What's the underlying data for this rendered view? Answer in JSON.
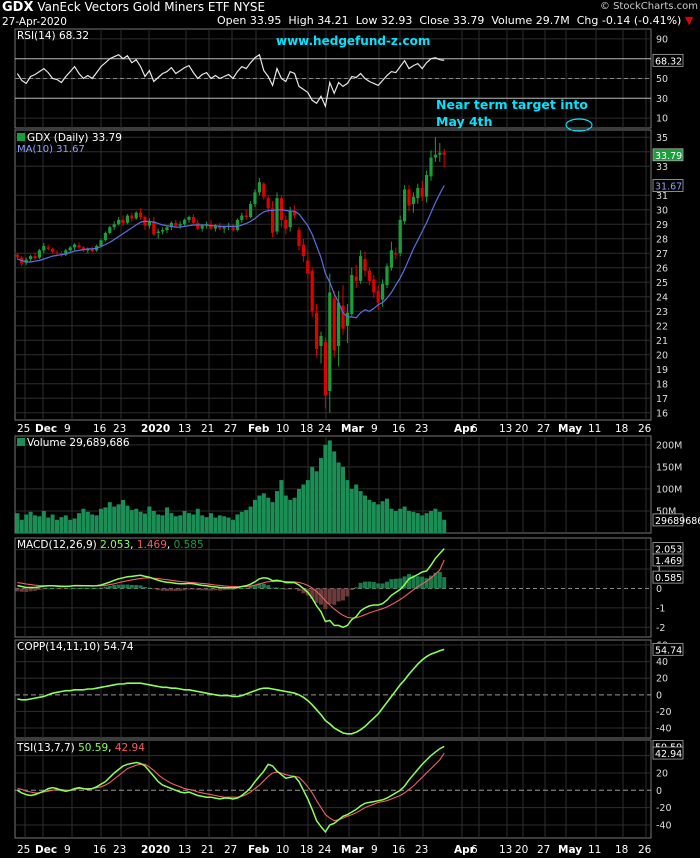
{
  "header": {
    "symbol": "GDX",
    "name": "VanEck Vectors Gold Miners ETF",
    "exchange": "NYSE",
    "credit": "© StockCharts.com",
    "date": "27-Apr-2020",
    "open_label": "Open",
    "open": "33.95",
    "high_label": "High",
    "high": "34.21",
    "low_label": "Low",
    "low": "32.93",
    "close_label": "Close",
    "close": "33.79",
    "volume_label": "Volume",
    "volume": "29.7M",
    "chg_label": "Chg",
    "chg": "-0.14 (-0.41%)",
    "chg_arrow": "▼"
  },
  "watermark": "www.hedgefund-z.com",
  "annotation": {
    "line1": "Near term target into",
    "line2": "May 4th"
  },
  "colors": {
    "up": "#1a9e3a",
    "down": "#e00000",
    "ma": "#5a6fe0",
    "rsi": "#e8e8e8",
    "oscillator": "#8cff5a",
    "signal": "#f06060",
    "volume": "#1a8e55",
    "annotation": "#00e5ff"
  },
  "x_axis": [
    "25",
    "Dec",
    "9",
    "16",
    "23",
    "2020",
    "13",
    "21",
    "27",
    "Feb",
    "10",
    "18",
    "24",
    "Mar",
    "9",
    "16",
    "23",
    "Apr",
    "6",
    "13",
    "20",
    "27",
    "May",
    "11",
    "18",
    "26"
  ],
  "panels": {
    "rsi": {
      "label": "RSI(14) 68.32",
      "value": "68.32",
      "ticks": [
        "90",
        "70",
        "50",
        "30",
        "10"
      ]
    },
    "price": {
      "label": "GDX (Daily) 33.79",
      "ma_label": "MA(10) 31.67",
      "close_tag": "33.79",
      "ma_tag": "31.67",
      "ticks": [
        "35",
        "34",
        "33",
        "31",
        "30",
        "29",
        "28",
        "27",
        "26",
        "25",
        "24",
        "23",
        "22",
        "21",
        "20",
        "19",
        "18",
        "17",
        "16"
      ]
    },
    "volume": {
      "label": "Volume 29,689,686",
      "tag": "29689686",
      "ticks": [
        "200M",
        "150M",
        "100M",
        "50M"
      ]
    },
    "macd": {
      "label": "MACD(12,26,9)",
      "macd": "2.053",
      "signal": "1.469",
      "hist": "0.585",
      "ticks": [
        "2",
        "1",
        "0",
        "-1",
        "-2"
      ]
    },
    "copp": {
      "label": "COPP(14,11,10) 54.74",
      "tag": "54.74",
      "ticks": [
        "60",
        "40",
        "20",
        "0",
        "-20",
        "-40"
      ]
    },
    "tsi": {
      "label": "TSI(13,7,7)",
      "tsi": "50.59",
      "signal": "42.94",
      "ticks": [
        "40",
        "20",
        "0",
        "-20",
        "-40"
      ]
    }
  },
  "chart_data": {
    "type": "candlestick",
    "title": "GDX (Daily)",
    "x_start": "2019-11-25",
    "x_end": "2020-04-27",
    "ylabel": "",
    "ylim": [
      15.5,
      35.5
    ],
    "ohlc": [
      [
        26.9,
        27.05,
        26.55,
        26.75
      ],
      [
        26.7,
        26.8,
        26.1,
        26.3
      ],
      [
        26.35,
        26.7,
        26.2,
        26.55
      ],
      [
        26.6,
        26.9,
        26.4,
        26.8
      ],
      [
        26.8,
        27.05,
        26.55,
        26.65
      ],
      [
        26.7,
        27.3,
        26.6,
        27.2
      ],
      [
        27.2,
        27.7,
        27.0,
        27.5
      ],
      [
        27.4,
        27.6,
        27.2,
        27.3
      ],
      [
        27.3,
        27.4,
        27.0,
        27.1
      ],
      [
        27.05,
        27.2,
        26.8,
        27.0
      ],
      [
        27.0,
        27.15,
        26.75,
        26.85
      ],
      [
        26.9,
        27.3,
        26.8,
        27.2
      ],
      [
        27.2,
        27.5,
        27.1,
        27.4
      ],
      [
        27.4,
        27.7,
        27.2,
        27.6
      ],
      [
        27.55,
        27.75,
        27.3,
        27.4
      ],
      [
        27.4,
        27.5,
        27.1,
        27.2
      ],
      [
        27.2,
        27.4,
        27.0,
        27.3
      ],
      [
        27.3,
        27.45,
        27.05,
        27.15
      ],
      [
        27.2,
        27.6,
        27.1,
        27.5
      ],
      [
        27.5,
        28.0,
        27.4,
        27.9
      ],
      [
        27.9,
        28.5,
        27.8,
        28.4
      ],
      [
        28.4,
        28.9,
        28.3,
        28.8
      ],
      [
        28.8,
        29.2,
        28.6,
        29.0
      ],
      [
        29.0,
        29.5,
        28.9,
        29.3
      ],
      [
        29.3,
        29.6,
        28.9,
        29.1
      ],
      [
        29.1,
        29.7,
        29.0,
        29.6
      ],
      [
        29.6,
        29.8,
        29.2,
        29.4
      ],
      [
        29.4,
        29.9,
        29.3,
        29.8
      ],
      [
        29.8,
        30.1,
        29.3,
        29.5
      ],
      [
        29.5,
        29.6,
        28.6,
        28.9
      ],
      [
        28.9,
        29.4,
        28.7,
        29.2
      ],
      [
        29.2,
        29.5,
        28.2,
        28.3
      ],
      [
        28.4,
        28.7,
        28.0,
        28.5
      ],
      [
        28.5,
        28.8,
        28.3,
        28.6
      ],
      [
        28.6,
        28.9,
        28.4,
        28.8
      ],
      [
        28.8,
        29.2,
        28.6,
        29.1
      ],
      [
        29.1,
        29.3,
        28.8,
        28.9
      ],
      [
        28.9,
        29.2,
        28.7,
        29.0
      ],
      [
        29.0,
        29.4,
        28.9,
        29.3
      ],
      [
        29.3,
        29.6,
        29.1,
        29.5
      ],
      [
        29.5,
        29.7,
        29.0,
        29.1
      ],
      [
        29.1,
        29.3,
        28.6,
        28.7
      ],
      [
        28.7,
        29.0,
        28.5,
        28.9
      ],
      [
        28.9,
        29.2,
        28.7,
        29.0
      ],
      [
        29.0,
        29.3,
        28.6,
        28.7
      ],
      [
        28.7,
        29.0,
        28.5,
        28.9
      ],
      [
        28.9,
        29.1,
        28.6,
        28.7
      ],
      [
        28.7,
        28.9,
        28.4,
        28.8
      ],
      [
        28.8,
        29.1,
        28.6,
        28.9
      ],
      [
        28.9,
        29.0,
        28.5,
        28.6
      ],
      [
        28.6,
        29.4,
        28.5,
        29.3
      ],
      [
        29.3,
        29.8,
        29.1,
        29.6
      ],
      [
        29.6,
        30.0,
        29.3,
        29.5
      ],
      [
        29.5,
        30.6,
        29.4,
        30.4
      ],
      [
        30.4,
        31.4,
        30.2,
        31.2
      ],
      [
        31.2,
        32.2,
        31.0,
        31.9
      ],
      [
        31.8,
        31.9,
        30.7,
        30.9
      ],
      [
        30.8,
        31.0,
        29.8,
        30.1
      ],
      [
        30.1,
        30.6,
        28.1,
        28.4
      ],
      [
        28.5,
        31.2,
        28.3,
        30.8
      ],
      [
        30.8,
        31.0,
        28.8,
        29.3
      ],
      [
        29.3,
        29.6,
        28.3,
        28.7
      ],
      [
        28.8,
        30.2,
        28.5,
        29.9
      ],
      [
        29.9,
        30.3,
        29.4,
        29.6
      ],
      [
        28.6,
        28.8,
        27.2,
        27.5
      ],
      [
        27.6,
        28.0,
        26.4,
        26.8
      ],
      [
        26.5,
        27.2,
        25.2,
        25.6
      ],
      [
        25.8,
        26.0,
        22.6,
        23.0
      ],
      [
        22.9,
        23.5,
        19.8,
        20.4
      ],
      [
        20.6,
        21.6,
        19.4,
        21.3
      ],
      [
        20.9,
        21.2,
        16.3,
        17.2
      ],
      [
        17.5,
        25.6,
        16.0,
        24.3
      ],
      [
        23.9,
        24.4,
        19.8,
        20.3
      ],
      [
        20.6,
        24.4,
        19.2,
        23.6
      ],
      [
        23.4,
        24.8,
        21.4,
        21.8
      ],
      [
        22.0,
        23.5,
        20.8,
        22.9
      ],
      [
        22.8,
        26.0,
        22.6,
        25.5
      ],
      [
        25.4,
        26.2,
        24.6,
        25.1
      ],
      [
        25.1,
        27.2,
        24.9,
        26.8
      ],
      [
        26.6,
        27.1,
        25.4,
        25.8
      ],
      [
        25.8,
        26.0,
        24.8,
        25.1
      ],
      [
        25.2,
        25.5,
        23.9,
        24.3
      ],
      [
        24.4,
        24.8,
        23.1,
        23.6
      ],
      [
        23.8,
        25.2,
        23.3,
        24.9
      ],
      [
        24.8,
        26.3,
        24.6,
        26.1
      ],
      [
        26.0,
        27.8,
        25.8,
        27.2
      ],
      [
        27.0,
        27.4,
        26.6,
        26.9
      ],
      [
        27.0,
        29.6,
        26.8,
        29.3
      ],
      [
        29.2,
        31.7,
        29.0,
        31.4
      ],
      [
        31.4,
        31.7,
        29.9,
        30.3
      ],
      [
        30.4,
        31.2,
        29.8,
        30.9
      ],
      [
        30.8,
        31.8,
        30.4,
        31.5
      ],
      [
        31.5,
        32.0,
        30.6,
        30.9
      ],
      [
        30.9,
        32.7,
        30.5,
        32.4
      ],
      [
        32.3,
        34.1,
        32.0,
        33.6
      ],
      [
        33.6,
        35.0,
        33.3,
        33.8
      ],
      [
        33.8,
        34.6,
        33.3,
        33.93
      ],
      [
        33.95,
        34.21,
        32.93,
        33.79
      ]
    ],
    "ma10": [
      26.6,
      26.5,
      26.4,
      26.4,
      26.45,
      26.5,
      26.6,
      26.7,
      26.8,
      26.85,
      26.9,
      26.95,
      27.05,
      27.15,
      27.2,
      27.25,
      27.3,
      27.3,
      27.35,
      27.45,
      27.6,
      27.75,
      27.95,
      28.15,
      28.35,
      28.55,
      28.75,
      28.95,
      29.15,
      29.2,
      29.2,
      29.15,
      29.05,
      28.95,
      28.9,
      28.85,
      28.8,
      28.8,
      28.85,
      28.9,
      28.95,
      28.95,
      28.95,
      28.95,
      28.9,
      28.9,
      28.85,
      28.85,
      28.85,
      28.85,
      28.85,
      28.95,
      29.05,
      29.2,
      29.4,
      29.65,
      29.85,
      29.95,
      29.95,
      30.0,
      30.0,
      29.95,
      29.9,
      29.9,
      29.7,
      29.3,
      28.9,
      28.3,
      27.5,
      26.7,
      25.6,
      25.0,
      24.2,
      23.6,
      22.9,
      22.6,
      22.6,
      22.55,
      22.9,
      23.1,
      23.0,
      23.2,
      23.45,
      23.6,
      23.9,
      24.3,
      24.8,
      25.3,
      25.9,
      26.6,
      27.3,
      27.9,
      28.5,
      29.1,
      29.8,
      30.5,
      31.1,
      31.67
    ],
    "volume_m": [
      45,
      30,
      42,
      48,
      40,
      38,
      50,
      35,
      42,
      30,
      36,
      40,
      30,
      33,
      45,
      55,
      48,
      42,
      40,
      55,
      58,
      70,
      60,
      65,
      75,
      62,
      52,
      55,
      48,
      44,
      60,
      50,
      42,
      40,
      58,
      45,
      38,
      40,
      50,
      45,
      42,
      55,
      40,
      36,
      45,
      35,
      40,
      38,
      35,
      30,
      42,
      48,
      52,
      60,
      75,
      85,
      90,
      80,
      70,
      95,
      120,
      85,
      75,
      80,
      100,
      110,
      120,
      150,
      140,
      170,
      200,
      210,
      185,
      160,
      150,
      120,
      100,
      110,
      95,
      85,
      75,
      70,
      65,
      72,
      78,
      55,
      50,
      55,
      60,
      50,
      48,
      45,
      40,
      45,
      50,
      55,
      48,
      30
    ],
    "macd": [
      0.15,
      0.1,
      0.05,
      0.05,
      0.05,
      0.08,
      0.12,
      0.14,
      0.14,
      0.12,
      0.1,
      0.1,
      0.12,
      0.15,
      0.15,
      0.14,
      0.14,
      0.13,
      0.14,
      0.18,
      0.25,
      0.33,
      0.42,
      0.5,
      0.55,
      0.6,
      0.62,
      0.66,
      0.68,
      0.62,
      0.58,
      0.5,
      0.42,
      0.36,
      0.32,
      0.3,
      0.26,
      0.24,
      0.24,
      0.26,
      0.24,
      0.2,
      0.16,
      0.14,
      0.1,
      0.08,
      0.05,
      0.04,
      0.04,
      0.03,
      0.05,
      0.1,
      0.14,
      0.22,
      0.35,
      0.5,
      0.55,
      0.52,
      0.4,
      0.42,
      0.38,
      0.3,
      0.3,
      0.3,
      0.18,
      0.0,
      -0.2,
      -0.5,
      -0.9,
      -1.2,
      -1.7,
      -1.65,
      -1.9,
      -1.9,
      -2.0,
      -1.9,
      -1.6,
      -1.45,
      -1.15,
      -1.0,
      -0.9,
      -0.85,
      -0.85,
      -0.78,
      -0.6,
      -0.35,
      -0.2,
      -0.05,
      0.2,
      0.5,
      0.6,
      0.72,
      0.85,
      0.9,
      1.2,
      1.55,
      1.8,
      2.053
    ],
    "macd_signal": [
      0.3,
      0.27,
      0.23,
      0.2,
      0.17,
      0.15,
      0.14,
      0.14,
      0.14,
      0.14,
      0.13,
      0.12,
      0.12,
      0.13,
      0.13,
      0.13,
      0.13,
      0.13,
      0.13,
      0.14,
      0.16,
      0.2,
      0.24,
      0.3,
      0.35,
      0.4,
      0.44,
      0.48,
      0.52,
      0.54,
      0.54,
      0.53,
      0.51,
      0.48,
      0.45,
      0.42,
      0.39,
      0.36,
      0.34,
      0.32,
      0.3,
      0.28,
      0.26,
      0.24,
      0.21,
      0.18,
      0.16,
      0.13,
      0.11,
      0.1,
      0.09,
      0.09,
      0.1,
      0.12,
      0.17,
      0.23,
      0.3,
      0.35,
      0.36,
      0.37,
      0.37,
      0.36,
      0.35,
      0.34,
      0.31,
      0.25,
      0.16,
      0.03,
      -0.16,
      -0.37,
      -0.64,
      -0.85,
      -1.06,
      -1.23,
      -1.38,
      -1.49,
      -1.52,
      -1.51,
      -1.44,
      -1.35,
      -1.26,
      -1.18,
      -1.11,
      -1.04,
      -0.95,
      -0.83,
      -0.7,
      -0.57,
      -0.42,
      -0.24,
      -0.07,
      0.09,
      0.24,
      0.37,
      0.54,
      0.74,
      0.95,
      1.469
    ],
    "macd_hist": [
      -0.15,
      -0.17,
      -0.18,
      -0.15,
      -0.12,
      -0.07,
      -0.02,
      0.0,
      0.0,
      -0.02,
      -0.03,
      -0.02,
      0.0,
      0.02,
      0.02,
      0.01,
      0.01,
      0.0,
      0.01,
      0.04,
      0.09,
      0.13,
      0.18,
      0.2,
      0.2,
      0.2,
      0.18,
      0.18,
      0.16,
      0.08,
      0.04,
      -0.03,
      -0.09,
      -0.12,
      -0.13,
      -0.12,
      -0.13,
      -0.12,
      -0.1,
      -0.06,
      -0.06,
      -0.08,
      -0.1,
      -0.1,
      -0.11,
      -0.1,
      -0.11,
      -0.09,
      -0.07,
      -0.07,
      -0.04,
      0.01,
      0.04,
      0.1,
      0.18,
      0.27,
      0.25,
      0.17,
      0.04,
      0.05,
      0.01,
      -0.06,
      -0.05,
      -0.04,
      -0.13,
      -0.25,
      -0.36,
      -0.53,
      -0.74,
      -0.83,
      -1.06,
      -0.8,
      -0.84,
      -0.67,
      -0.62,
      -0.41,
      -0.08,
      0.06,
      0.29,
      0.35,
      0.36,
      0.33,
      0.26,
      0.26,
      0.35,
      0.48,
      0.5,
      0.52,
      0.62,
      0.74,
      0.67,
      0.63,
      0.61,
      0.53,
      0.66,
      0.81,
      0.85,
      0.585
    ],
    "coppock": [
      -5,
      -6,
      -6,
      -5,
      -4,
      -3,
      -2,
      0,
      2,
      3,
      4,
      5,
      5,
      6,
      6,
      6,
      7,
      7,
      8,
      9,
      10,
      11,
      12,
      13,
      13,
      14,
      14,
      14,
      14,
      13,
      12,
      11,
      10,
      9,
      9,
      8,
      8,
      7,
      6,
      6,
      5,
      4,
      3,
      2,
      1,
      0,
      -1,
      -1,
      -1,
      -2,
      -2,
      -1,
      1,
      3,
      5,
      7,
      8,
      8,
      7,
      6,
      5,
      4,
      3,
      2,
      0,
      -3,
      -7,
      -12,
      -18,
      -24,
      -31,
      -35,
      -40,
      -43,
      -46,
      -47,
      -47,
      -45,
      -42,
      -38,
      -33,
      -28,
      -23,
      -16,
      -9,
      -2,
      5,
      12,
      18,
      25,
      31,
      37,
      42,
      46,
      49,
      51,
      53,
      54.74
    ],
    "tsi": [
      0,
      -3,
      -5,
      -6,
      -5,
      -3,
      -1,
      2,
      3,
      2,
      0,
      -1,
      0,
      2,
      3,
      2,
      1,
      2,
      4,
      7,
      10,
      15,
      20,
      24,
      28,
      30,
      31,
      32,
      31,
      28,
      22,
      16,
      10,
      6,
      4,
      2,
      0,
      -2,
      -3,
      -2,
      -4,
      -6,
      -7,
      -8,
      -8,
      -9,
      -10,
      -9,
      -9,
      -10,
      -9,
      -6,
      -2,
      3,
      10,
      16,
      22,
      30,
      28,
      22,
      18,
      14,
      15,
      16,
      10,
      0,
      -10,
      -22,
      -35,
      -42,
      -48,
      -40,
      -38,
      -34,
      -30,
      -28,
      -25,
      -22,
      -18,
      -15,
      -14,
      -13,
      -12,
      -11,
      -9,
      -6,
      -3,
      0,
      5,
      12,
      18,
      24,
      30,
      35,
      40,
      44,
      48,
      50.59
    ],
    "tsi_signal": [
      2,
      1,
      -1,
      -2,
      -3,
      -3,
      -2,
      -1,
      0,
      1,
      1,
      0,
      0,
      1,
      2,
      2,
      2,
      2,
      3,
      4,
      6,
      9,
      13,
      17,
      21,
      25,
      27,
      29,
      30,
      30,
      27,
      23,
      18,
      14,
      11,
      8,
      6,
      4,
      2,
      1,
      0,
      -2,
      -3,
      -4,
      -5,
      -6,
      -7,
      -8,
      -8,
      -8,
      -8,
      -7,
      -5,
      -2,
      2,
      6,
      11,
      16,
      20,
      21,
      20,
      18,
      17,
      16,
      15,
      10,
      4,
      -3,
      -12,
      -20,
      -28,
      -32,
      -35,
      -34,
      -32,
      -30,
      -28,
      -26,
      -23,
      -20,
      -18,
      -16,
      -14,
      -13,
      -12,
      -10,
      -8,
      -6,
      -3,
      1,
      5,
      10,
      15,
      20,
      25,
      30,
      35,
      42.94
    ],
    "rsi": [
      55,
      48,
      45,
      52,
      54,
      57,
      60,
      56,
      50,
      49,
      46,
      52,
      57,
      62,
      55,
      50,
      53,
      50,
      56,
      62,
      66,
      70,
      72,
      74,
      70,
      73,
      66,
      69,
      62,
      52,
      58,
      47,
      51,
      55,
      57,
      61,
      55,
      58,
      61,
      63,
      56,
      50,
      54,
      56,
      50,
      53,
      50,
      52,
      54,
      50,
      57,
      62,
      60,
      66,
      71,
      74,
      58,
      52,
      43,
      60,
      50,
      47,
      57,
      55,
      42,
      39,
      36,
      28,
      25,
      32,
      22,
      46,
      35,
      46,
      42,
      45,
      52,
      51,
      55,
      50,
      47,
      45,
      43,
      48,
      53,
      57,
      56,
      62,
      68,
      60,
      63,
      65,
      60,
      66,
      70,
      71,
      69,
      68.32
    ]
  }
}
